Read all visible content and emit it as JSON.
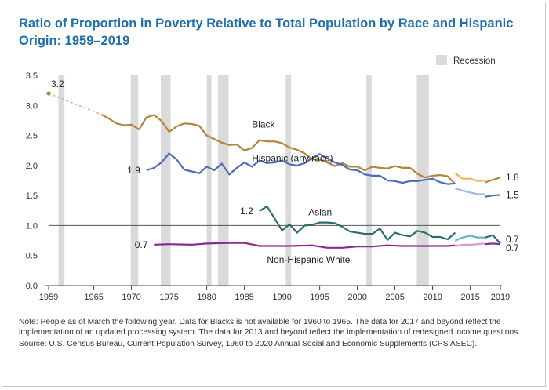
{
  "title": "Ratio of Proportion in Poverty Relative to Total Population by Race and Hispanic Origin: 1959–2019",
  "legend": {
    "recession_label": "Recession"
  },
  "notes": {
    "note": "Note: People as of March the following year. Data for Blacks is not available for 1960 to 1965. The data for 2017 and beyond reflect the implementation of an updated processing system. The data for 2013 and beyond reflect the implementation of redesigned income questions.",
    "source": "Source: U.S. Census Bureau, Current Population Survey, 1960 to 2020 Annual Social and Economic Supplements (CPS ASEC)."
  },
  "chart_data": {
    "type": "line",
    "xlim": [
      1959,
      2019
    ],
    "ylim": [
      0,
      3.5
    ],
    "x_ticks": [
      1959,
      1965,
      1970,
      1975,
      1980,
      1985,
      1990,
      1995,
      2000,
      2005,
      2010,
      2015,
      2019
    ],
    "y_ticks": [
      "0.0",
      "0.5",
      "1.0",
      "1.5",
      "2.0",
      "2.5",
      "3.0",
      "3.5"
    ],
    "reference_line": 1.0,
    "recessions": [
      [
        1960.3,
        1961.1
      ],
      [
        1969.9,
        1970.9
      ],
      [
        1973.9,
        1975.2
      ],
      [
        1980.0,
        1980.5
      ],
      [
        1981.5,
        1982.9
      ],
      [
        1990.5,
        1991.2
      ],
      [
        2001.2,
        2001.9
      ],
      [
        2007.9,
        2009.5
      ]
    ],
    "series": [
      {
        "name": "Black",
        "color": "#b5853a",
        "light_color": "#f3b25f",
        "label_x": 1986,
        "label_y": 2.63,
        "point_1959": [
          1959,
          3.2
        ],
        "point_1959_label": "3.2",
        "dashed": [
          [
            1959,
            3.2
          ],
          [
            1966,
            2.85
          ]
        ],
        "main": [
          [
            1966,
            2.85
          ],
          [
            1967,
            2.78
          ],
          [
            1968,
            2.7
          ],
          [
            1969,
            2.67
          ],
          [
            1970,
            2.68
          ],
          [
            1971,
            2.6
          ],
          [
            1972,
            2.8
          ],
          [
            1973,
            2.84
          ],
          [
            1974,
            2.74
          ],
          [
            1975,
            2.56
          ],
          [
            1976,
            2.65
          ],
          [
            1977,
            2.7
          ],
          [
            1978,
            2.69
          ],
          [
            1979,
            2.66
          ],
          [
            1980,
            2.5
          ],
          [
            1981,
            2.44
          ],
          [
            1982,
            2.38
          ],
          [
            1983,
            2.34
          ],
          [
            1984,
            2.35
          ],
          [
            1985,
            2.25
          ],
          [
            1986,
            2.29
          ],
          [
            1987,
            2.42
          ],
          [
            1988,
            2.4
          ],
          [
            1989,
            2.4
          ],
          [
            1990,
            2.37
          ],
          [
            1991,
            2.3
          ],
          [
            1992,
            2.26
          ],
          [
            1993,
            2.2
          ],
          [
            1994,
            2.1
          ],
          [
            1995,
            2.1
          ],
          [
            1996,
            2.05
          ],
          [
            1997,
            1.99
          ],
          [
            1998,
            2.04
          ],
          [
            1999,
            1.98
          ],
          [
            2000,
            1.98
          ],
          [
            2001,
            1.92
          ],
          [
            2002,
            1.98
          ],
          [
            2003,
            1.96
          ],
          [
            2004,
            1.95
          ],
          [
            2005,
            1.99
          ],
          [
            2006,
            1.96
          ],
          [
            2007,
            1.96
          ],
          [
            2008,
            1.86
          ],
          [
            2009,
            1.8
          ],
          [
            2010,
            1.83
          ],
          [
            2011,
            1.84
          ],
          [
            2012,
            1.82
          ],
          [
            2013,
            1.69
          ]
        ],
        "extension": [
          [
            2013,
            1.87
          ],
          [
            2014,
            1.78
          ],
          [
            2015,
            1.78
          ],
          [
            2016,
            1.74
          ],
          [
            2017,
            1.75
          ]
        ],
        "tail": [
          [
            2017,
            1.72
          ],
          [
            2018,
            1.76
          ],
          [
            2019,
            1.8
          ]
        ],
        "end_label": "1.8"
      },
      {
        "name": "Hispanic (any race)",
        "color": "#4b6cb7",
        "light_color": "#9fb4e6",
        "label_x": 1986,
        "label_y": 2.07,
        "start_label": "1.9",
        "main": [
          [
            1972,
            1.92
          ],
          [
            1973,
            1.96
          ],
          [
            1974,
            2.05
          ],
          [
            1975,
            2.2
          ],
          [
            1976,
            2.1
          ],
          [
            1977,
            1.93
          ],
          [
            1978,
            1.9
          ],
          [
            1979,
            1.87
          ],
          [
            1980,
            1.98
          ],
          [
            1981,
            1.92
          ],
          [
            1982,
            2.03
          ],
          [
            1983,
            1.85
          ],
          [
            1984,
            1.96
          ],
          [
            1985,
            2.05
          ],
          [
            1986,
            1.98
          ],
          [
            1987,
            2.08
          ],
          [
            1988,
            2.04
          ],
          [
            1989,
            2.05
          ],
          [
            1990,
            2.08
          ],
          [
            1991,
            2.02
          ],
          [
            1992,
            2.0
          ],
          [
            1993,
            2.04
          ],
          [
            1994,
            2.12
          ],
          [
            1995,
            2.19
          ],
          [
            1996,
            2.12
          ],
          [
            1997,
            2.05
          ],
          [
            1998,
            2.01
          ],
          [
            1999,
            1.93
          ],
          [
            2000,
            1.92
          ],
          [
            2001,
            1.85
          ],
          [
            2002,
            1.83
          ],
          [
            2003,
            1.83
          ],
          [
            2004,
            1.75
          ],
          [
            2005,
            1.74
          ],
          [
            2006,
            1.71
          ],
          [
            2007,
            1.74
          ],
          [
            2008,
            1.74
          ],
          [
            2009,
            1.76
          ],
          [
            2010,
            1.78
          ],
          [
            2011,
            1.72
          ],
          [
            2012,
            1.69
          ],
          [
            2013,
            1.7
          ]
        ],
        "extension": [
          [
            2013,
            1.62
          ],
          [
            2014,
            1.58
          ],
          [
            2015,
            1.55
          ],
          [
            2016,
            1.52
          ],
          [
            2017,
            1.52
          ]
        ],
        "tail": [
          [
            2017,
            1.48
          ],
          [
            2018,
            1.5
          ],
          [
            2019,
            1.51
          ]
        ],
        "end_label": "1.5"
      },
      {
        "name": "Asian",
        "color": "#2b6e6b",
        "light_color": "#5fb8b5",
        "label_x": 1993.5,
        "label_y": 1.17,
        "start_label": "1.2",
        "main": [
          [
            1987,
            1.24
          ],
          [
            1988,
            1.32
          ],
          [
            1989,
            1.12
          ],
          [
            1990,
            0.92
          ],
          [
            1991,
            1.02
          ],
          [
            1992,
            0.88
          ],
          [
            1993,
            1.0
          ],
          [
            1994,
            1.01
          ],
          [
            1995,
            1.05
          ],
          [
            1996,
            1.05
          ],
          [
            1997,
            1.04
          ],
          [
            1998,
            0.98
          ],
          [
            1999,
            0.9
          ],
          [
            2000,
            0.88
          ],
          [
            2001,
            0.86
          ],
          [
            2002,
            0.86
          ],
          [
            2003,
            0.95
          ],
          [
            2004,
            0.76
          ],
          [
            2005,
            0.88
          ],
          [
            2006,
            0.84
          ],
          [
            2007,
            0.82
          ],
          [
            2008,
            0.91
          ],
          [
            2009,
            0.88
          ],
          [
            2010,
            0.81
          ],
          [
            2011,
            0.81
          ],
          [
            2012,
            0.77
          ],
          [
            2013,
            0.88
          ]
        ],
        "extension": [
          [
            2013,
            0.75
          ],
          [
            2014,
            0.8
          ],
          [
            2015,
            0.83
          ],
          [
            2016,
            0.8
          ],
          [
            2017,
            0.8
          ]
        ],
        "tail": [
          [
            2017,
            0.8
          ],
          [
            2018,
            0.84
          ],
          [
            2019,
            0.7
          ]
        ],
        "end_label": "0.7"
      },
      {
        "name": "Non-Hispanic White",
        "color": "#8a2a8c",
        "light_color": "#d39bd6",
        "label_x": 1988,
        "label_y": 0.38,
        "start_label": "0.7",
        "main": [
          [
            1973,
            0.68
          ],
          [
            1975,
            0.69
          ],
          [
            1978,
            0.68
          ],
          [
            1980,
            0.7
          ],
          [
            1983,
            0.71
          ],
          [
            1985,
            0.71
          ],
          [
            1987,
            0.66
          ],
          [
            1989,
            0.66
          ],
          [
            1991,
            0.66
          ],
          [
            1994,
            0.67
          ],
          [
            1996,
            0.63
          ],
          [
            1998,
            0.63
          ],
          [
            2000,
            0.65
          ],
          [
            2002,
            0.65
          ],
          [
            2004,
            0.67
          ],
          [
            2006,
            0.66
          ],
          [
            2008,
            0.66
          ],
          [
            2010,
            0.66
          ],
          [
            2012,
            0.66
          ],
          [
            2013,
            0.67
          ]
        ],
        "extension": [
          [
            2013,
            0.66
          ],
          [
            2014,
            0.68
          ],
          [
            2015,
            0.68
          ],
          [
            2016,
            0.69
          ],
          [
            2017,
            0.7
          ]
        ],
        "tail": [
          [
            2017,
            0.69
          ],
          [
            2018,
            0.7
          ],
          [
            2019,
            0.69
          ]
        ],
        "end_label": "0.7"
      }
    ]
  }
}
